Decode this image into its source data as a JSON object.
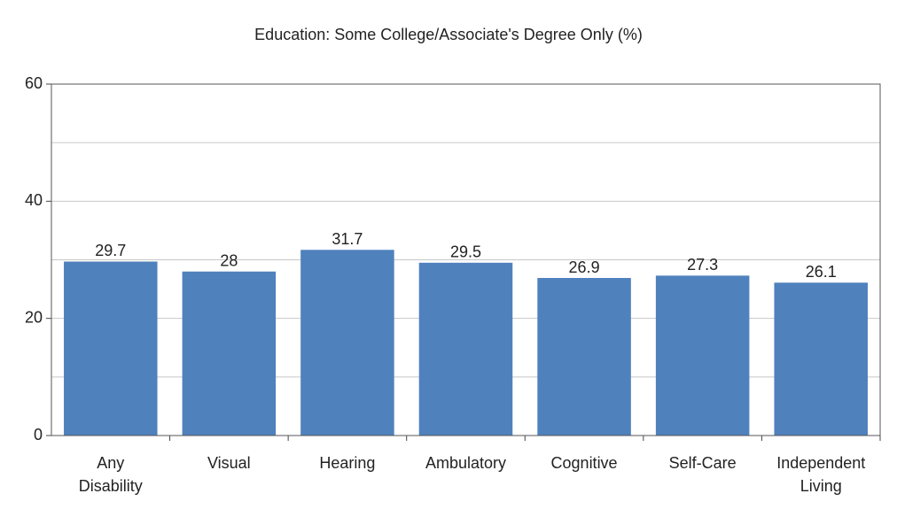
{
  "chart_data": {
    "type": "bar",
    "title": "Education: Some College/Associate's Degree Only (%)",
    "categories": [
      "Any Disability",
      "Visual",
      "Hearing",
      "Ambulatory",
      "Cognitive",
      "Self-Care",
      "Independent Living"
    ],
    "values": [
      29.7,
      28,
      31.7,
      29.5,
      26.9,
      27.3,
      26.1
    ],
    "color": "#4f81bd",
    "ylim": [
      0,
      60
    ],
    "yticks": [
      0,
      20,
      40,
      60
    ],
    "minor_yticks": [
      10,
      30,
      50
    ],
    "grid": true
  }
}
